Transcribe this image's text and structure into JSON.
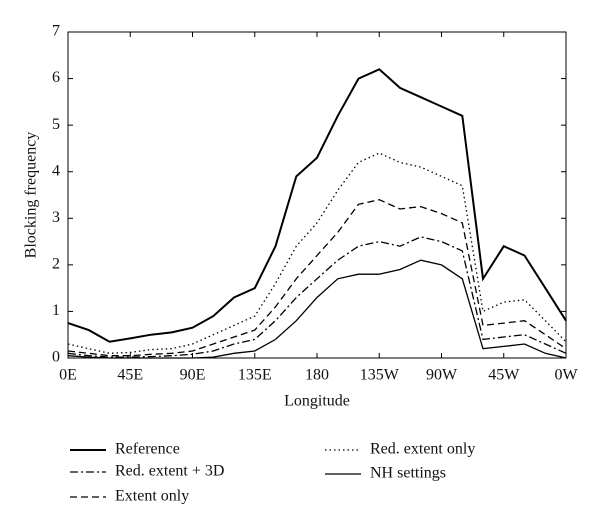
{
  "chart_data": {
    "type": "line",
    "x_label": "Longitude",
    "y_label": "Blocking frequency",
    "x": [
      0,
      15,
      30,
      45,
      60,
      75,
      90,
      105,
      120,
      135,
      150,
      165,
      180,
      195,
      210,
      225,
      240,
      255,
      270,
      285,
      300,
      315,
      330,
      345,
      360
    ],
    "xlim": [
      0,
      360
    ],
    "xticks": [
      {
        "value": 0,
        "label": "0E"
      },
      {
        "value": 45,
        "label": "45E"
      },
      {
        "value": 90,
        "label": "90E"
      },
      {
        "value": 135,
        "label": "135E"
      },
      180,
      {
        "value": 225,
        "label": "135W"
      },
      {
        "value": 270,
        "label": "90W"
      },
      {
        "value": 315,
        "label": "45W"
      },
      {
        "value": 360,
        "label": "0W"
      }
    ],
    "ylim": [
      0,
      7
    ],
    "yticks": [
      0,
      1,
      2,
      3,
      4,
      5,
      6,
      7
    ],
    "series": [
      {
        "name": "Reference",
        "color": "#000000",
        "style": "solid",
        "linewidth": 2,
        "values": [
          0.75,
          0.6,
          0.35,
          0.42,
          0.5,
          0.55,
          0.65,
          0.9,
          1.3,
          1.5,
          2.4,
          3.9,
          4.3,
          5.2,
          6.0,
          6.2,
          5.8,
          5.6,
          5.4,
          5.2,
          1.7,
          2.4,
          2.2,
          1.5,
          0.8
        ]
      },
      {
        "name": "Red. extent + 3D",
        "color": "#000000",
        "style": "dashdot",
        "linewidth": 1.3,
        "values": [
          0.1,
          0.05,
          0.02,
          0.02,
          0.03,
          0.05,
          0.08,
          0.15,
          0.3,
          0.4,
          0.8,
          1.3,
          1.7,
          2.1,
          2.4,
          2.5,
          2.4,
          2.6,
          2.5,
          2.3,
          0.4,
          0.45,
          0.5,
          0.3,
          0.1
        ]
      },
      {
        "name": "Extent only",
        "color": "#000000",
        "style": "dashed",
        "linewidth": 1.3,
        "values": [
          0.15,
          0.1,
          0.05,
          0.05,
          0.08,
          0.1,
          0.15,
          0.3,
          0.45,
          0.6,
          1.1,
          1.7,
          2.2,
          2.7,
          3.3,
          3.4,
          3.2,
          3.25,
          3.1,
          2.9,
          0.7,
          0.75,
          0.8,
          0.5,
          0.2
        ]
      },
      {
        "name": "Red. extent only",
        "color": "#000000",
        "style": "dotted",
        "linewidth": 1.3,
        "values": [
          0.3,
          0.2,
          0.1,
          0.12,
          0.18,
          0.2,
          0.3,
          0.5,
          0.7,
          0.9,
          1.6,
          2.4,
          2.9,
          3.6,
          4.2,
          4.4,
          4.2,
          4.1,
          3.9,
          3.7,
          1.0,
          1.2,
          1.25,
          0.8,
          0.35
        ]
      },
      {
        "name": "NH settings",
        "color": "#000000",
        "style": "solid",
        "linewidth": 1.3,
        "values": [
          0.05,
          0.02,
          0,
          0,
          0,
          0,
          0,
          0.02,
          0.1,
          0.15,
          0.4,
          0.8,
          1.3,
          1.7,
          1.8,
          1.8,
          1.9,
          2.1,
          2.0,
          1.7,
          0.2,
          0.25,
          0.3,
          0.1,
          0
        ]
      }
    ]
  }
}
